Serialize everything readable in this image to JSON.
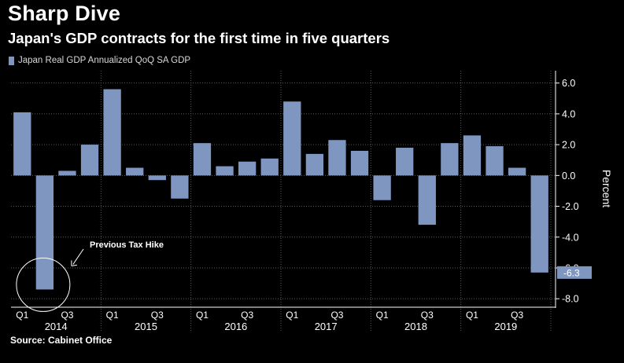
{
  "colors": {
    "bar": "#7f97c0",
    "background": "#000000",
    "grid": "#5a5a5a",
    "text": "#ffffff",
    "label_box": "#7f97c0"
  },
  "chart_data": {
    "type": "bar",
    "title": "Sharp Dive",
    "subtitle": "Japan's GDP contracts for the first time in five quarters",
    "legend": [
      "Japan Real GDP Annualized QoQ SA GDP"
    ],
    "ylabel": "Percent",
    "ylim": [
      -8.5,
      6.8
    ],
    "yticks": [
      "6.0",
      "4.0",
      "2.0",
      "0.0",
      "-2.0",
      "-4.0",
      "-6.0",
      "-8.0"
    ],
    "year_labels": [
      "2014",
      "2015",
      "2016",
      "2017",
      "2018",
      "2019"
    ],
    "quarter_labels": [
      "Q1",
      "Q3"
    ],
    "categories": [
      "2014 Q1",
      "2014 Q2",
      "2014 Q3",
      "2014 Q4",
      "2015 Q1",
      "2015 Q2",
      "2015 Q3",
      "2015 Q4",
      "2016 Q1",
      "2016 Q2",
      "2016 Q3",
      "2016 Q4",
      "2017 Q1",
      "2017 Q2",
      "2017 Q3",
      "2017 Q4",
      "2018 Q1",
      "2018 Q2",
      "2018 Q3",
      "2018 Q4",
      "2019 Q1",
      "2019 Q2",
      "2019 Q3",
      "2019 Q4"
    ],
    "series": [
      {
        "values": [
          4.1,
          -7.4,
          0.3,
          2.0,
          5.6,
          0.5,
          -0.3,
          -1.5,
          2.1,
          0.6,
          0.9,
          1.1,
          4.8,
          1.4,
          2.3,
          1.6,
          -1.6,
          1.8,
          -3.2,
          2.1,
          2.6,
          1.9,
          0.5,
          -6.3
        ]
      }
    ],
    "last_value_label": "-6.3",
    "annotation": {
      "text": "Previous Tax Hike",
      "category": "2014 Q2"
    },
    "grid": true,
    "legend_position": "top-left"
  },
  "source": "Source: Cabinet Office"
}
